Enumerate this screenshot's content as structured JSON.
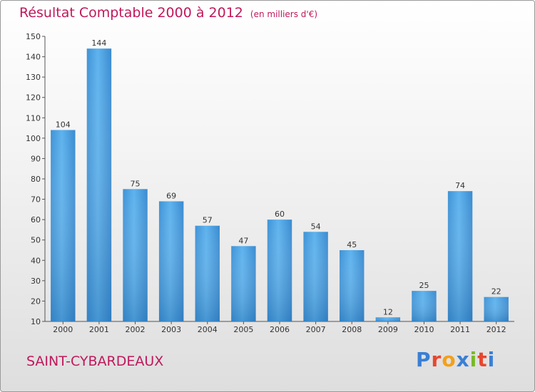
{
  "chart_data": {
    "type": "bar",
    "title": "Résultat Comptable 2000 à 2012",
    "subtitle": "(en milliers d'€)",
    "categories": [
      "2000",
      "2001",
      "2002",
      "2003",
      "2004",
      "2005",
      "2006",
      "2007",
      "2008",
      "2009",
      "2010",
      "2011",
      "2012"
    ],
    "values": [
      104,
      144,
      75,
      69,
      57,
      47,
      60,
      54,
      45,
      12,
      25,
      74,
      22
    ],
    "ylim": [
      10,
      150
    ],
    "yticks": [
      10,
      20,
      30,
      40,
      50,
      60,
      70,
      80,
      90,
      100,
      110,
      120,
      130,
      140,
      150
    ],
    "grid": false,
    "xlabel": "",
    "ylabel": "",
    "bar_color": "#4a9fe0"
  },
  "footer": {
    "commune": "SAINT-CYBARDEAUX",
    "logo": "Proxiti",
    "logo_colors": [
      "#3a7fd5",
      "#e8462e",
      "#f4a019",
      "#3a7fd5",
      "#7ab929",
      "#e8462e",
      "#3a7fd5"
    ]
  }
}
